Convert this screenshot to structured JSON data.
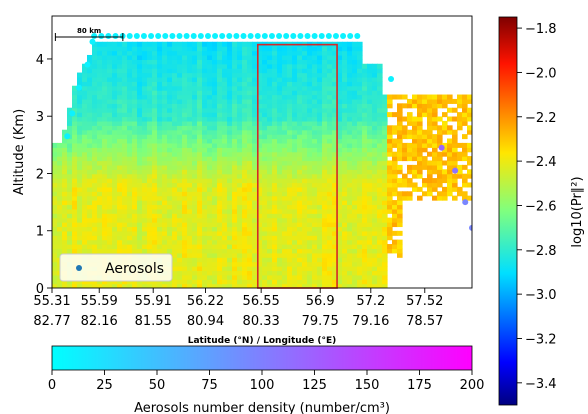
{
  "chart_data": {
    "type": "heatmap",
    "y_axis": {
      "label": "Altitude (Km)",
      "ticks": [
        0,
        1,
        2,
        3,
        4
      ],
      "range": [
        0,
        4.75
      ]
    },
    "x_axis": {
      "label": "Latitude (°N) / Longitude (°E)",
      "tick_latitudes": [
        "55.31",
        "55.59",
        "55.91",
        "56.22",
        "56.55",
        "56.9",
        "57.2",
        "57.52"
      ],
      "tick_longitudes": [
        "82.77",
        "82.16",
        "81.55",
        "80.94",
        "80.33",
        "79.75",
        "79.16",
        "78.57"
      ],
      "range": [
        55.31,
        57.8
      ]
    },
    "scale_bar": {
      "label": "80 km",
      "from": 55.33,
      "to": 55.73
    },
    "highlight_box": {
      "from_lat": 56.53,
      "to_lat": 57.0,
      "bottom_km": 0,
      "top_km": 4.25,
      "color": "#d62728"
    },
    "colorbar_right": {
      "label": "log10(Pr∥²)",
      "ticks": [
        "−1.8",
        "−2.0",
        "−2.2",
        "−2.4",
        "−2.6",
        "−2.8",
        "−3.0",
        "−3.2",
        "−3.4"
      ],
      "range": [
        -3.5,
        -1.75
      ],
      "colormap": "jet"
    },
    "colorbar_bottom": {
      "label": "Aerosols number density (number/cm³)",
      "ticks": [
        "0",
        "25",
        "50",
        "75",
        "100",
        "125",
        "150",
        "175",
        "200"
      ],
      "range": [
        0,
        200
      ],
      "colormap": "cool",
      "color_start": "#00ffff",
      "color_end": "#ff00ff"
    },
    "legend": {
      "label": "Aerosols",
      "position": "lower-left",
      "marker_color": "#1f77b4"
    },
    "aerosol_points": {
      "top_row_altitude_km": 4.4,
      "top_row_from": 55.56,
      "top_row_to": 57.12,
      "top_row_count": 38,
      "top_row_density": 10,
      "other": [
        {
          "lat": 55.4,
          "alt": 2.65,
          "density": 10
        },
        {
          "lat": 55.43,
          "alt": 3.05,
          "density": 10
        },
        {
          "lat": 55.47,
          "alt": 3.5,
          "density": 10
        },
        {
          "lat": 55.52,
          "alt": 3.9,
          "density": 10
        },
        {
          "lat": 55.55,
          "alt": 4.3,
          "density": 10
        },
        {
          "lat": 57.32,
          "alt": 3.65,
          "density": 10
        },
        {
          "lat": 57.62,
          "alt": 2.45,
          "density": 120
        },
        {
          "lat": 57.7,
          "alt": 2.05,
          "density": 110
        },
        {
          "lat": 57.76,
          "alt": 1.5,
          "density": 95
        },
        {
          "lat": 57.8,
          "alt": 1.05,
          "density": 95
        }
      ]
    }
  }
}
